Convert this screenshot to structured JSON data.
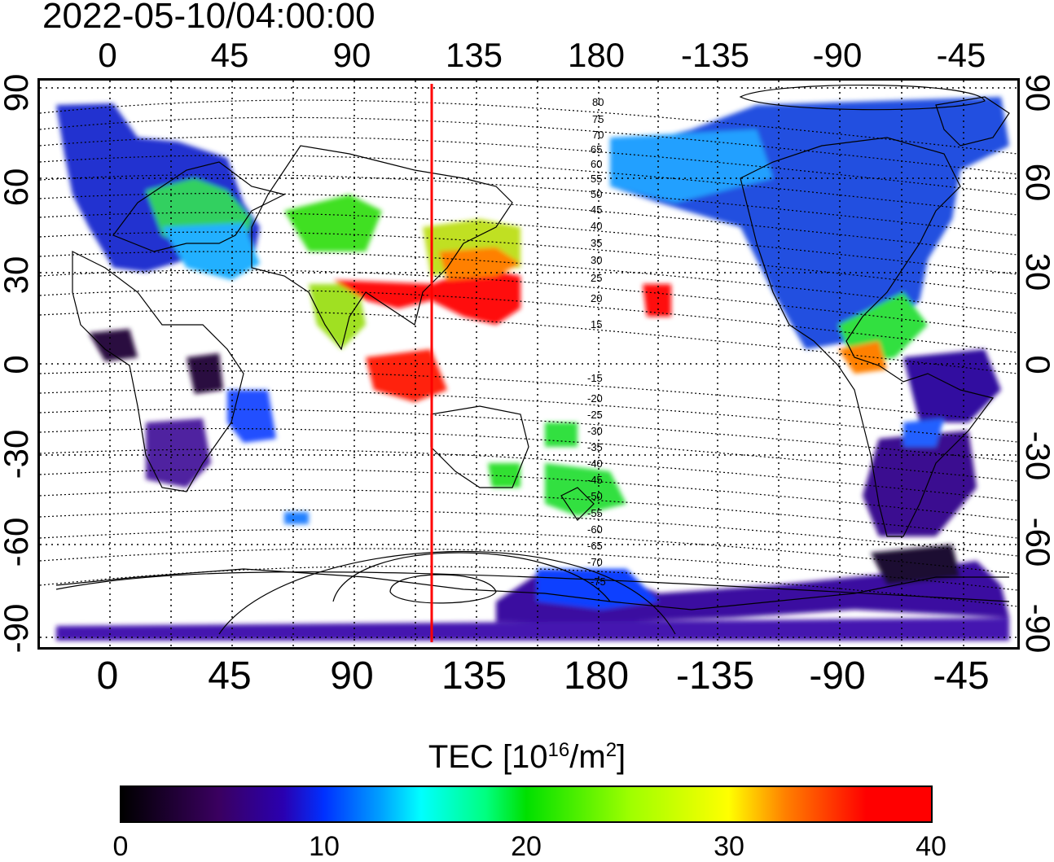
{
  "title": "2022-05-10/04:00:00",
  "map": {
    "top_lon_labels": [
      "0",
      "45",
      "90",
      "135",
      "180",
      "-135",
      "-90",
      "-45"
    ],
    "bottom_lon_labels": [
      "0",
      "45",
      "90",
      "135",
      "180",
      "-135",
      "-90",
      "-45"
    ],
    "left_lat_labels": [
      "90",
      "60",
      "30",
      "0",
      "-30",
      "-60",
      "-90"
    ],
    "right_lat_labels": [
      "90",
      "60",
      "30",
      "0",
      "-30",
      "-60",
      "-90"
    ],
    "north_contour_labels": [
      "80",
      "75",
      "70",
      "65",
      "60",
      "55",
      "50",
      "45",
      "40",
      "35",
      "30",
      "25",
      "20",
      "15"
    ],
    "south_contour_labels": [
      "-15",
      "-20",
      "-25",
      "-30",
      "-35",
      "-40",
      "-45",
      "-50",
      "-55",
      "-60",
      "-65",
      "-70",
      "-75"
    ],
    "meridian_line_color": "#ff0000",
    "grid": true
  },
  "colorbar": {
    "title_prefix": "TEC  [10",
    "title_exp1": "16",
    "title_mid": "/m",
    "title_exp2": "2",
    "title_suffix": "]",
    "ticks": [
      "0",
      "10",
      "20",
      "30",
      "40"
    ],
    "range": [
      0,
      40
    ]
  }
}
